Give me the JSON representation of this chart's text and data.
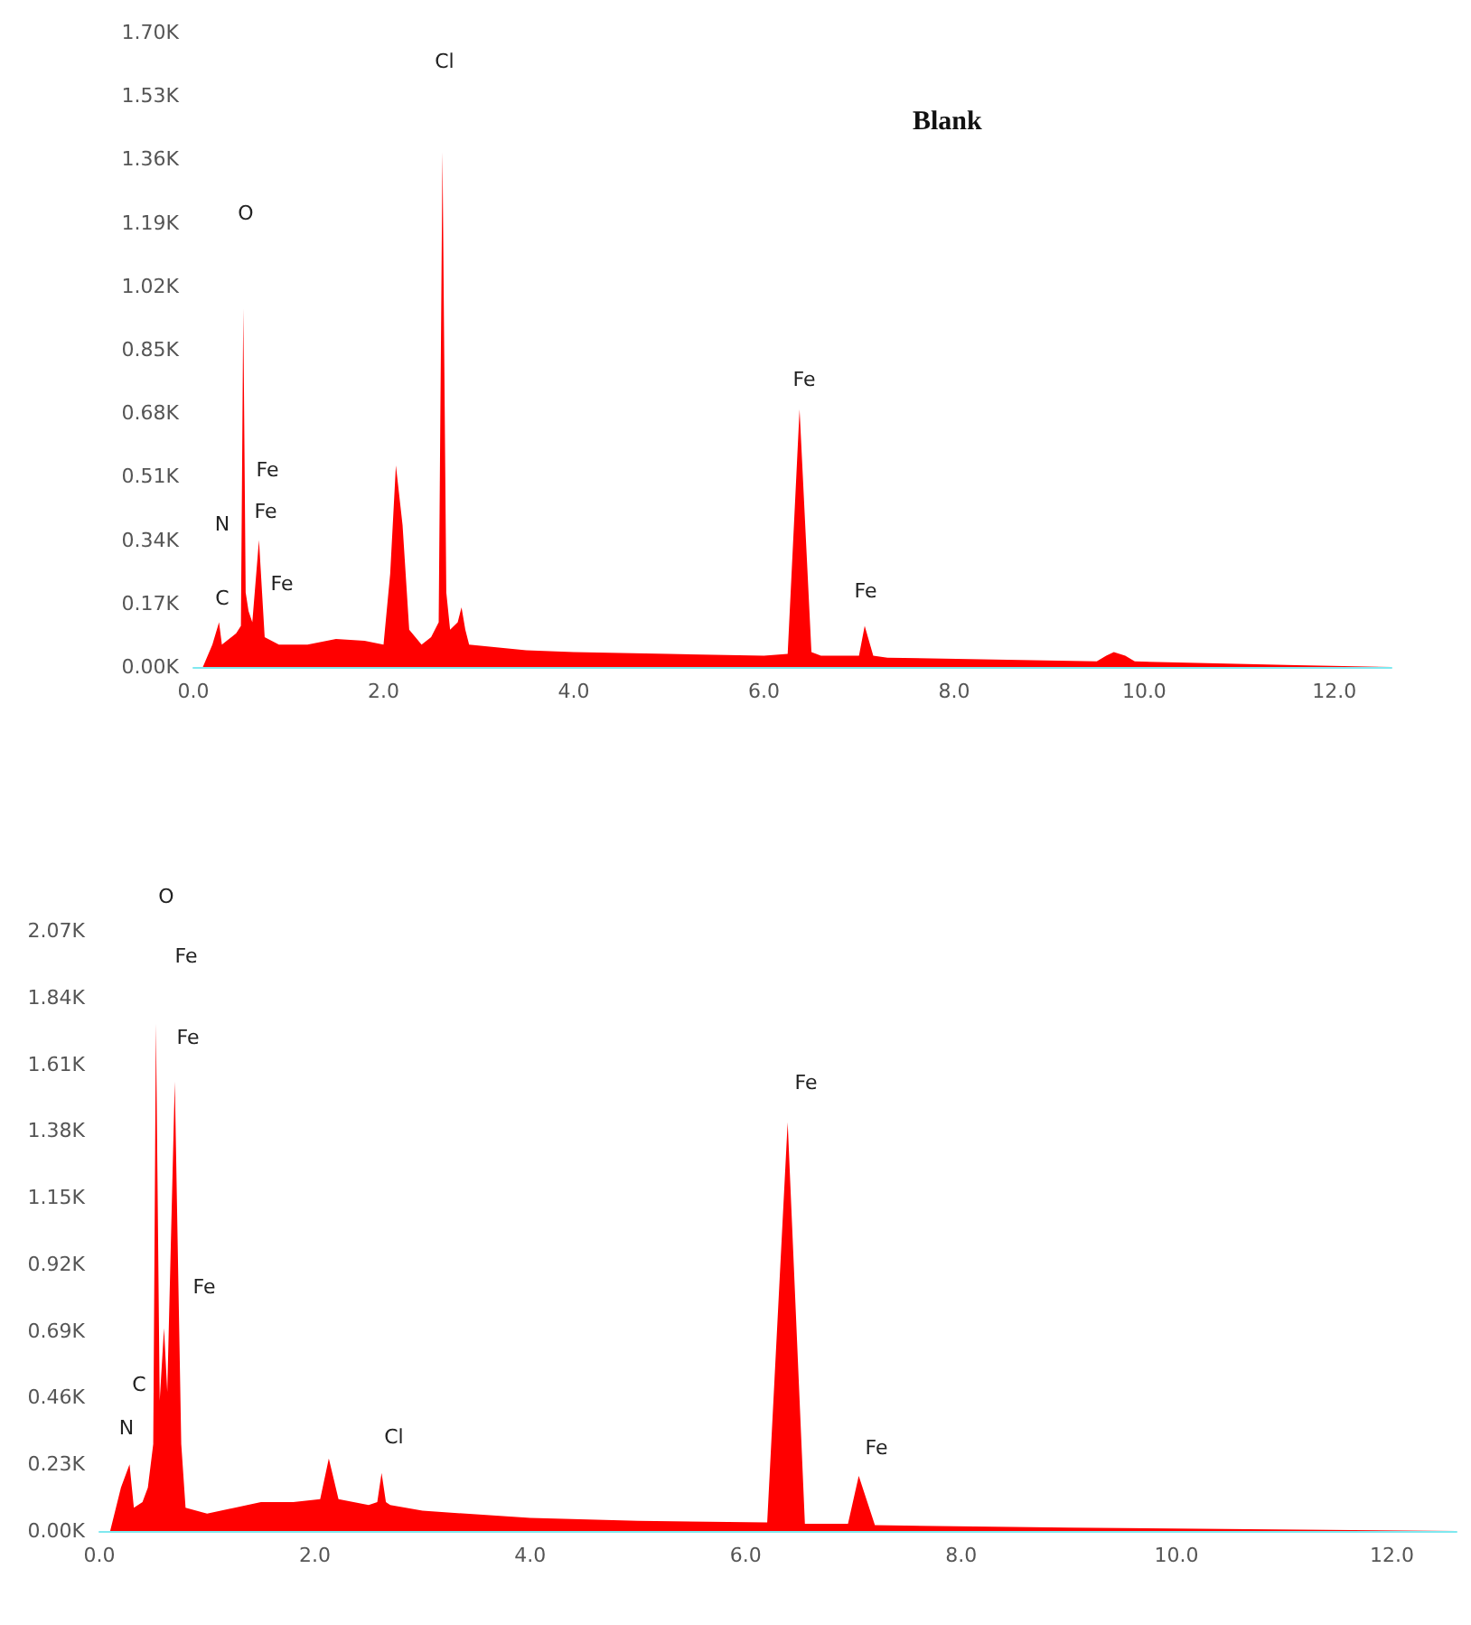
{
  "chart_data": [
    {
      "type": "area",
      "title": "Blank",
      "xlim": [
        0,
        12.6
      ],
      "ylim": [
        0,
        1700
      ],
      "xticks": [
        {
          "value": 0,
          "label": "0.0"
        },
        {
          "value": 2,
          "label": "2.0"
        },
        {
          "value": 4,
          "label": "4.0"
        },
        {
          "value": 6,
          "label": "6.0"
        },
        {
          "value": 8,
          "label": "8.0"
        },
        {
          "value": 10,
          "label": "10.0"
        },
        {
          "value": 12,
          "label": "12.0"
        }
      ],
      "yticks": [
        {
          "value": 0,
          "label": "0.00K"
        },
        {
          "value": 170,
          "label": "0.17K"
        },
        {
          "value": 340,
          "label": "0.34K"
        },
        {
          "value": 510,
          "label": "0.51K"
        },
        {
          "value": 680,
          "label": "0.68K"
        },
        {
          "value": 850,
          "label": "0.85K"
        },
        {
          "value": 1020,
          "label": "1.02K"
        },
        {
          "value": 1190,
          "label": "1.19K"
        },
        {
          "value": 1360,
          "label": "1.36K"
        },
        {
          "value": 1530,
          "label": "1.53K"
        },
        {
          "value": 1700,
          "label": "1.70K"
        }
      ],
      "series": [
        {
          "color": "#ff0000",
          "x": [
            0.1,
            0.2,
            0.27,
            0.3,
            0.4,
            0.45,
            0.5,
            0.525,
            0.55,
            0.58,
            0.62,
            0.69,
            0.75,
            0.9,
            1.2,
            1.5,
            1.8,
            2.0,
            2.07,
            2.13,
            2.2,
            2.27,
            2.4,
            2.5,
            2.58,
            2.62,
            2.66,
            2.7,
            2.78,
            2.82,
            2.86,
            2.9,
            3.5,
            4.0,
            5.0,
            6.0,
            6.25,
            6.375,
            6.5,
            6.6,
            7.0,
            7.06,
            7.15,
            7.3,
            9.5,
            9.6,
            9.68,
            9.8,
            9.9,
            11.6,
            12.6
          ],
          "values": [
            0,
            60,
            120,
            60,
            80,
            90,
            110,
            960,
            200,
            150,
            120,
            340,
            80,
            60,
            60,
            75,
            70,
            60,
            250,
            540,
            380,
            100,
            60,
            80,
            120,
            1380,
            200,
            100,
            120,
            160,
            100,
            60,
            45,
            40,
            35,
            30,
            35,
            690,
            40,
            30,
            30,
            110,
            30,
            25,
            15,
            30,
            40,
            30,
            15,
            5,
            0
          ]
        }
      ],
      "annotations": [
        "C",
        "N",
        "O",
        "Fe",
        "Fe",
        "Fe",
        "Cl",
        "Fe",
        "Fe"
      ]
    },
    {
      "type": "area",
      "xlim": [
        0,
        12.6
      ],
      "ylim": [
        0,
        2070
      ],
      "xticks": [
        {
          "value": 0,
          "label": "0.0"
        },
        {
          "value": 2,
          "label": "2.0"
        },
        {
          "value": 4,
          "label": "4.0"
        },
        {
          "value": 6,
          "label": "6.0"
        },
        {
          "value": 8,
          "label": "8.0"
        },
        {
          "value": 10,
          "label": "10.0"
        },
        {
          "value": 12,
          "label": "12.0"
        }
      ],
      "yticks": [
        {
          "value": 0,
          "label": "0.00K"
        },
        {
          "value": 230,
          "label": "0.23K"
        },
        {
          "value": 460,
          "label": "0.46K"
        },
        {
          "value": 690,
          "label": "0.69K"
        },
        {
          "value": 920,
          "label": "0.92K"
        },
        {
          "value": 1150,
          "label": "1.15K"
        },
        {
          "value": 1380,
          "label": "1.38K"
        },
        {
          "value": 1610,
          "label": "1.61K"
        },
        {
          "value": 1840,
          "label": "1.84K"
        },
        {
          "value": 2070,
          "label": "2.07K"
        }
      ],
      "series": [
        {
          "color": "#ff0000",
          "x": [
            0.1,
            0.2,
            0.28,
            0.32,
            0.4,
            0.45,
            0.5,
            0.525,
            0.56,
            0.6,
            0.63,
            0.7,
            0.76,
            0.8,
            1.0,
            1.5,
            1.8,
            2.05,
            2.13,
            2.22,
            2.5,
            2.58,
            2.62,
            2.66,
            2.7,
            3.0,
            4.0,
            5.0,
            6.2,
            6.39,
            6.55,
            6.95,
            7.05,
            7.2,
            9.0,
            12.6
          ],
          "values": [
            0,
            150,
            230,
            80,
            100,
            150,
            300,
            1750,
            450,
            700,
            480,
            1550,
            300,
            80,
            60,
            100,
            100,
            110,
            250,
            110,
            90,
            100,
            200,
            100,
            90,
            70,
            45,
            35,
            30,
            1410,
            25,
            25,
            190,
            20,
            12,
            0
          ]
        }
      ],
      "annotations": [
        "O",
        "Fe",
        "Fe",
        "Fe",
        "C",
        "N",
        "Cl",
        "Fe",
        "Fe"
      ]
    }
  ]
}
